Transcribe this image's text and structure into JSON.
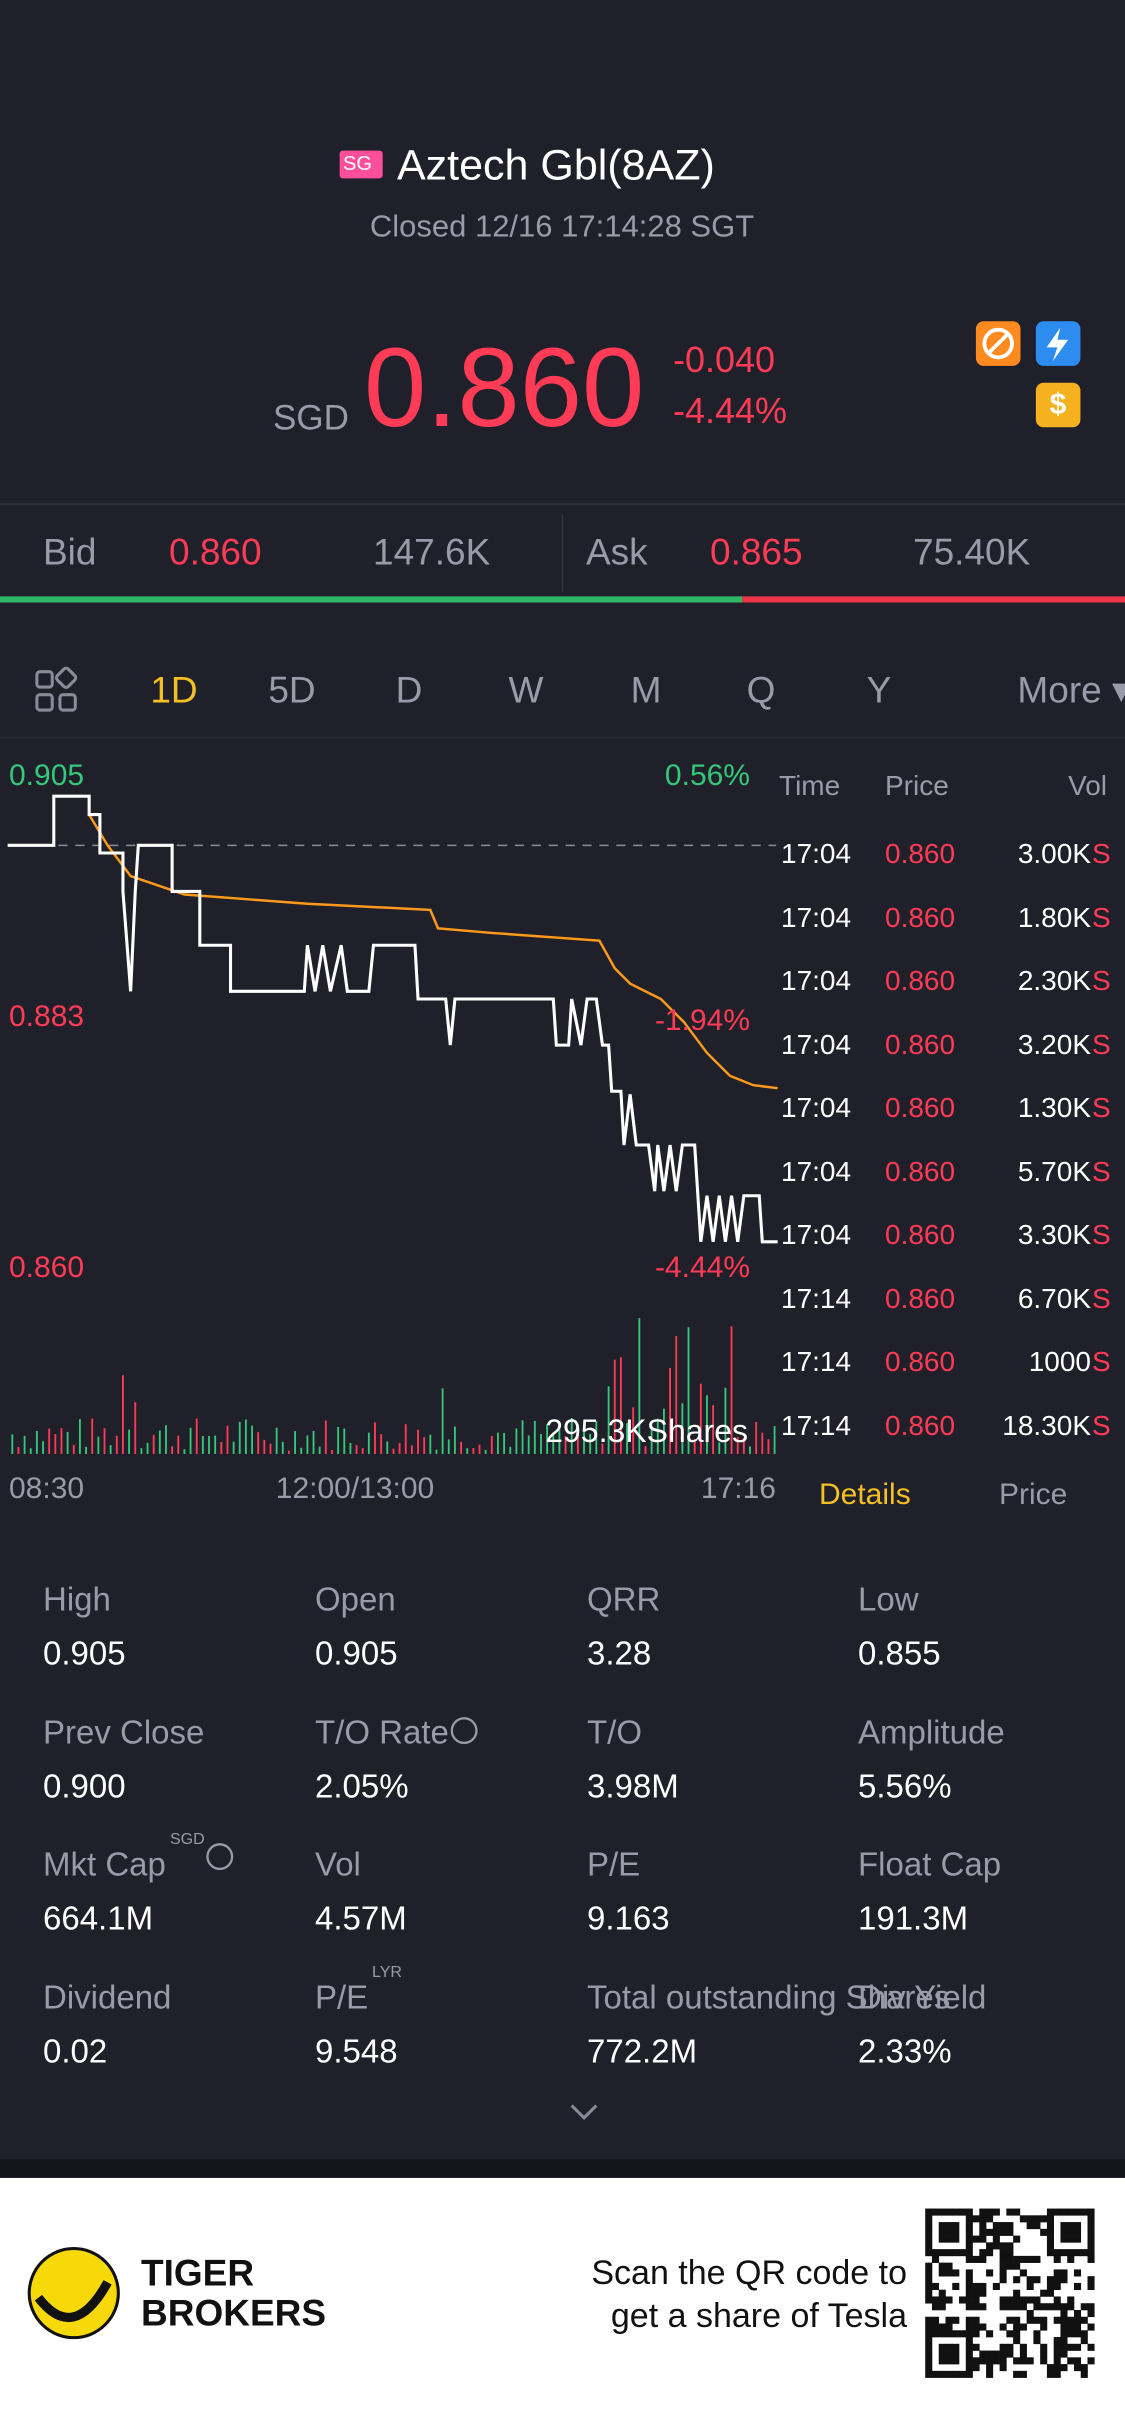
{
  "header": {
    "badge": "SG",
    "title": "Aztech Gbl(8AZ)",
    "status": "Closed 12/16 17:14:28 SGT"
  },
  "quote": {
    "currency": "SGD",
    "price": "0.860",
    "change": "-0.040",
    "change_pct": "-4.44%",
    "icon_dollar": "$"
  },
  "bid_ask": {
    "bid_label": "Bid",
    "bid_price": "0.860",
    "bid_size": "147.6K",
    "ask_label": "Ask",
    "ask_price": "0.865",
    "ask_size": "75.40K"
  },
  "tabs": [
    "1D",
    "5D",
    "D",
    "W",
    "M",
    "Q",
    "Y",
    "More ▾"
  ],
  "chart": {
    "price_high": "0.905",
    "pct_high": "0.56%",
    "price_mid": "0.883",
    "pct_mid": "-1.94%",
    "price_low": "0.860",
    "pct_low": "-4.44%",
    "volume": "295.3KShares",
    "time_start": "08:30",
    "time_mid": "12:00/13:00",
    "time_end": "17:16"
  },
  "trades": {
    "headers": [
      "Time",
      "Price",
      "Vol"
    ],
    "rows": [
      [
        "17:04",
        "0.860",
        "3.00K",
        "S"
      ],
      [
        "17:04",
        "0.860",
        "1.80K",
        "S"
      ],
      [
        "17:04",
        "0.860",
        "2.30K",
        "S"
      ],
      [
        "17:04",
        "0.860",
        "3.20K",
        "S"
      ],
      [
        "17:04",
        "0.860",
        "1.30K",
        "S"
      ],
      [
        "17:04",
        "0.860",
        "5.70K",
        "S"
      ],
      [
        "17:04",
        "0.860",
        "3.30K",
        "S"
      ],
      [
        "17:14",
        "0.860",
        "6.70K",
        "S"
      ],
      [
        "17:14",
        "0.860",
        "1000",
        "S"
      ],
      [
        "17:14",
        "0.860",
        "18.30K",
        "S"
      ]
    ],
    "tab_details": "Details",
    "tab_price": "Price"
  },
  "stats": [
    {
      "label": "High",
      "value": "0.905"
    },
    {
      "label": "Open",
      "value": "0.905"
    },
    {
      "label": "QRR",
      "value": "3.28"
    },
    {
      "label": "Low",
      "value": "0.855"
    },
    {
      "label": "Prev Close",
      "value": "0.900"
    },
    {
      "label": "T/O Rate",
      "value": "2.05%"
    },
    {
      "label": "T/O",
      "value": "3.98M"
    },
    {
      "label": "Amplitude",
      "value": "5.56%"
    },
    {
      "label": "Mkt Cap",
      "value": "664.1M",
      "sup": "SGD"
    },
    {
      "label": "Vol",
      "value": "4.57M"
    },
    {
      "label": "P/E",
      "value": "9.163"
    },
    {
      "label": "Float Cap",
      "value": "191.3M"
    },
    {
      "label": "Dividend",
      "value": "0.02"
    },
    {
      "label": "P/E",
      "value": "9.548",
      "sup": "LYR"
    },
    {
      "label": "Total outstanding Shares",
      "value": "772.2M"
    },
    {
      "label": "Div Yield",
      "value": "2.33%"
    }
  ],
  "footer": {
    "brand_line1": "TIGER",
    "brand_line2": "BROKERS",
    "promo_line1": "Scan the QR code to",
    "promo_line2": "get a share of Tesla"
  }
}
